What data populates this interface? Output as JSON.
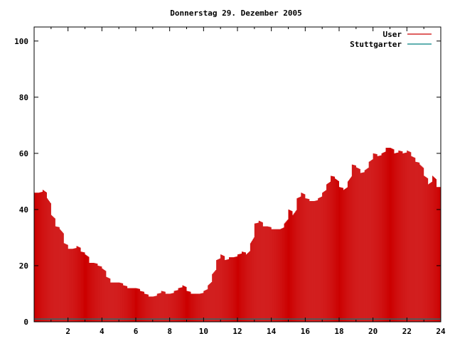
{
  "chart_data": {
    "type": "bar",
    "title": "Donnerstag 29. Dezember 2005",
    "xlabel": "",
    "ylabel": "",
    "xlim": [
      0,
      24
    ],
    "ylim": [
      0,
      105
    ],
    "x_ticks": [
      2,
      4,
      6,
      8,
      10,
      12,
      14,
      16,
      18,
      20,
      22,
      24
    ],
    "y_ticks": [
      0,
      20,
      40,
      60,
      80,
      100
    ],
    "legend_position": "top-right",
    "grid": false,
    "series": [
      {
        "name": "User",
        "color": "#cc0000",
        "x": [
          0.0,
          0.25,
          0.5,
          0.75,
          1.0,
          1.25,
          1.5,
          1.75,
          2.0,
          2.25,
          2.5,
          2.75,
          3.0,
          3.25,
          3.5,
          3.75,
          4.0,
          4.25,
          4.5,
          4.75,
          5.0,
          5.25,
          5.5,
          5.75,
          6.0,
          6.25,
          6.5,
          6.75,
          7.0,
          7.25,
          7.5,
          7.75,
          8.0,
          8.25,
          8.5,
          8.75,
          9.0,
          9.25,
          9.5,
          9.75,
          10.0,
          10.25,
          10.5,
          10.75,
          11.0,
          11.25,
          11.5,
          11.75,
          12.0,
          12.25,
          12.5,
          12.75,
          13.0,
          13.25,
          13.5,
          13.75,
          14.0,
          14.25,
          14.5,
          14.75,
          15.0,
          15.25,
          15.5,
          15.75,
          16.0,
          16.25,
          16.5,
          16.75,
          17.0,
          17.25,
          17.5,
          17.75,
          18.0,
          18.25,
          18.5,
          18.75,
          19.0,
          19.25,
          19.5,
          19.75,
          20.0,
          20.25,
          20.5,
          20.75,
          21.0,
          21.25,
          21.5,
          21.75,
          22.0,
          22.25,
          22.5,
          22.75,
          23.0,
          23.25,
          23.5,
          23.75
        ],
        "values": [
          46,
          46,
          47,
          44,
          38,
          34,
          33,
          28,
          26,
          26,
          27,
          25,
          24,
          21,
          21,
          20,
          19,
          16,
          14,
          14,
          14,
          13,
          12,
          12,
          12,
          11,
          10,
          9,
          9,
          10,
          11,
          10,
          10,
          11,
          12,
          13,
          11,
          10,
          10,
          10,
          11,
          13,
          17,
          22,
          24,
          22,
          23,
          23,
          24,
          25,
          24,
          28,
          35,
          36,
          34,
          34,
          33,
          33,
          33,
          35,
          40,
          38,
          44,
          46,
          44,
          43,
          43,
          44,
          46,
          49,
          52,
          51,
          48,
          47,
          50,
          56,
          55,
          53,
          54,
          57,
          60,
          59,
          60,
          62,
          62,
          60,
          61,
          60,
          61,
          59,
          57,
          56,
          52,
          49,
          52,
          48
        ]
      },
      {
        "name": "Stuttgarter",
        "color": "#008080",
        "x": [
          0,
          24
        ],
        "values": [
          1,
          1
        ]
      }
    ]
  }
}
